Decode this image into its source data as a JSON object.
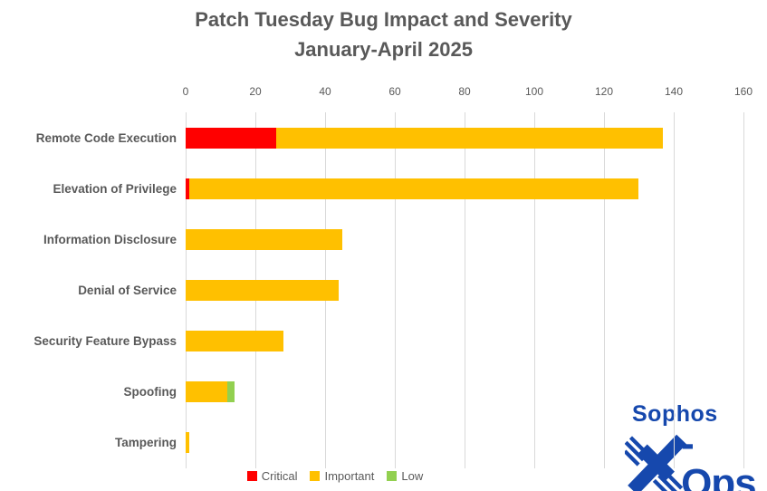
{
  "chart_data": {
    "type": "bar",
    "orientation": "horizontal",
    "stacked": true,
    "title": "Patch Tuesday Bug Impact and Severity",
    "subtitle": "January-April 2025",
    "categories": [
      "Remote Code Execution",
      "Elevation of Privilege",
      "Information Disclosure",
      "Denial of Service",
      "Security Feature Bypass",
      "Spoofing",
      "Tampering"
    ],
    "series": [
      {
        "name": "Critical",
        "color": "#FF0000",
        "values": [
          26,
          1,
          0,
          0,
          0,
          0,
          0
        ]
      },
      {
        "name": "Important",
        "color": "#FFC000",
        "values": [
          111,
          129,
          45,
          44,
          28,
          12,
          1
        ]
      },
      {
        "name": "Low",
        "color": "#92D050",
        "values": [
          0,
          0,
          0,
          0,
          0,
          2,
          0
        ]
      }
    ],
    "totals": [
      137,
      130,
      45,
      44,
      28,
      14,
      1
    ],
    "x_axis": {
      "min": 0,
      "max": 160,
      "tick_step": 20,
      "tick_labels": [
        "0",
        "20",
        "40",
        "60",
        "80",
        "100",
        "120",
        "140",
        "160"
      ],
      "position": "top"
    },
    "legend": {
      "position": "bottom",
      "entries": [
        "Critical",
        "Important",
        "Low"
      ]
    },
    "gridlines": true
  },
  "logo": {
    "brand": "Sophos",
    "ops_text": "-Ops",
    "color": "#1648AD"
  },
  "colors": {
    "background": "#FFFFFF",
    "title_text": "#595959",
    "axis_text": "#595959",
    "gridline": "#D9D9D9"
  }
}
